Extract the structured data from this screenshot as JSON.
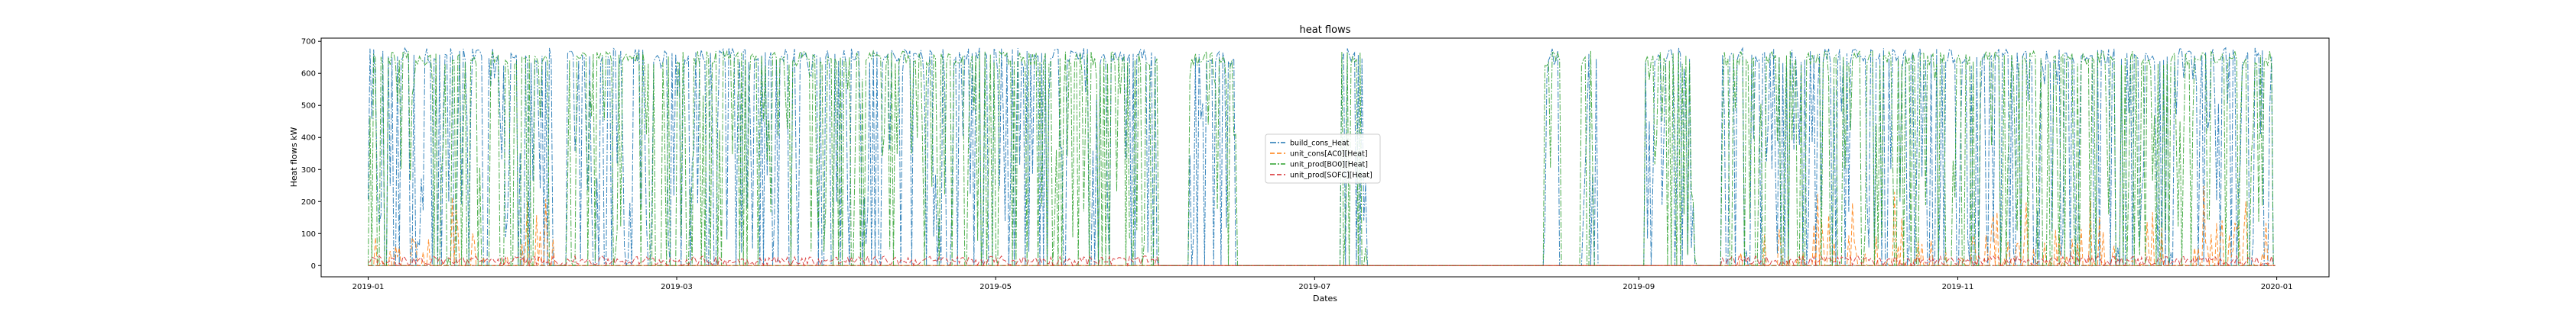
{
  "chart_data": {
    "type": "line",
    "title": "heat flows",
    "xlabel": "Dates",
    "ylabel": "Heat flows kW",
    "xlim": [
      "2018-12-23",
      "2020-01-11"
    ],
    "ylim": [
      -35,
      710
    ],
    "yticks": [
      0,
      100,
      200,
      300,
      400,
      500,
      600,
      700
    ],
    "xticks": [
      "2019-01",
      "2019-03",
      "2019-05",
      "2019-07",
      "2019-09",
      "2019-11",
      "2020-01"
    ],
    "grid": false,
    "legend_position": "center",
    "series": [
      {
        "name": "build_cons_Heat",
        "color": "#1f77b4",
        "style": "dashdot",
        "active_periods": [
          [
            "2019-01-01",
            "2019-01-23"
          ],
          [
            "2019-01-24",
            "2019-02-05"
          ],
          [
            "2019-02-08",
            "2019-06-01"
          ],
          [
            "2019-06-07",
            "2019-06-16"
          ],
          [
            "2019-07-06",
            "2019-07-11"
          ],
          [
            "2019-08-14",
            "2019-08-17"
          ],
          [
            "2019-08-21",
            "2019-08-24"
          ],
          [
            "2019-09-02",
            "2019-09-12"
          ],
          [
            "2019-09-17",
            "2019-12-31"
          ]
        ],
        "min": 0,
        "max": 680
      },
      {
        "name": "unit_cons[AC0][Heat]",
        "color": "#ff7f0e",
        "style": "dashed",
        "active_periods": [
          [
            "2019-01-01",
            "2019-02-06"
          ],
          [
            "2019-09-20",
            "2019-12-31"
          ]
        ],
        "min": 0,
        "max": 260
      },
      {
        "name": "unit_prod[BO0][Heat]",
        "color": "#2ca02c",
        "style": "dashdot",
        "active_periods": [
          [
            "2019-01-01",
            "2019-01-23"
          ],
          [
            "2019-01-24",
            "2019-02-05"
          ],
          [
            "2019-02-08",
            "2019-06-01"
          ],
          [
            "2019-06-07",
            "2019-06-16"
          ],
          [
            "2019-07-06",
            "2019-07-11"
          ],
          [
            "2019-08-14",
            "2019-08-17"
          ],
          [
            "2019-08-21",
            "2019-08-24"
          ],
          [
            "2019-09-02",
            "2019-09-12"
          ],
          [
            "2019-09-17",
            "2019-12-31"
          ]
        ],
        "min": 0,
        "max": 670
      },
      {
        "name": "unit_prod[SOFC][Heat]",
        "color": "#d62728",
        "style": "dashed",
        "active_periods": [
          [
            "2019-01-01",
            "2019-06-01"
          ],
          [
            "2019-09-17",
            "2019-12-31"
          ]
        ],
        "min": 0,
        "max": 30
      }
    ]
  }
}
